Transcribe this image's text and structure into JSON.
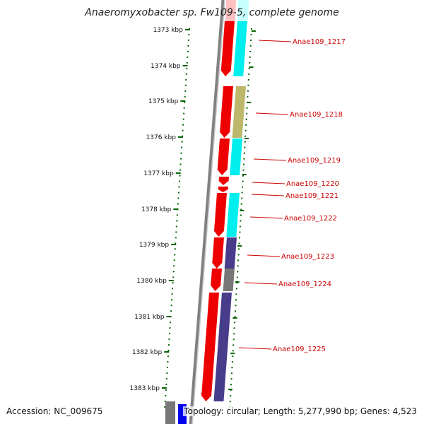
{
  "title": "Anaeromyxobacter sp. Fw109-5, complete genome",
  "footer": {
    "accession": "Accession: NC_009675",
    "summary": "Topology: circular; Length: 5,277,990 bp; Genes: 4,523"
  },
  "colors": {
    "cds": "#ee0000",
    "cog_cyan": "#00eeee",
    "cog_khaki": "#bdb76b",
    "cog_slate": "#483d8b",
    "cog_gray": "#777777",
    "cog_pink": "#ffc0c0",
    "tick": "#006400",
    "label": "#cc0000",
    "backbone": "#808080"
  },
  "ticks": [
    "1373 kbp",
    "1374 kbp",
    "1375 kbp",
    "1376 kbp",
    "1377 kbp",
    "1378 kbp",
    "1379 kbp",
    "1380 kbp",
    "1381 kbp",
    "1382 kbp",
    "1383 kbp"
  ],
  "genes": [
    {
      "label": "Anae109_1217",
      "cog": "cog_cyan"
    },
    {
      "label": "Anae109_1218",
      "cog": "cog_khaki"
    },
    {
      "label": "Anae109_1219",
      "cog": "cog_cyan"
    },
    {
      "label": "Anae109_1220",
      "cog": ""
    },
    {
      "label": "Anae109_1221",
      "cog": ""
    },
    {
      "label": "Anae109_1222",
      "cog": "cog_cyan"
    },
    {
      "label": "Anae109_1223",
      "cog": "cog_slate"
    },
    {
      "label": "Anae109_1224",
      "cog": "cog_gray"
    },
    {
      "label": "Anae109_1225",
      "cog": "cog_slate"
    }
  ]
}
